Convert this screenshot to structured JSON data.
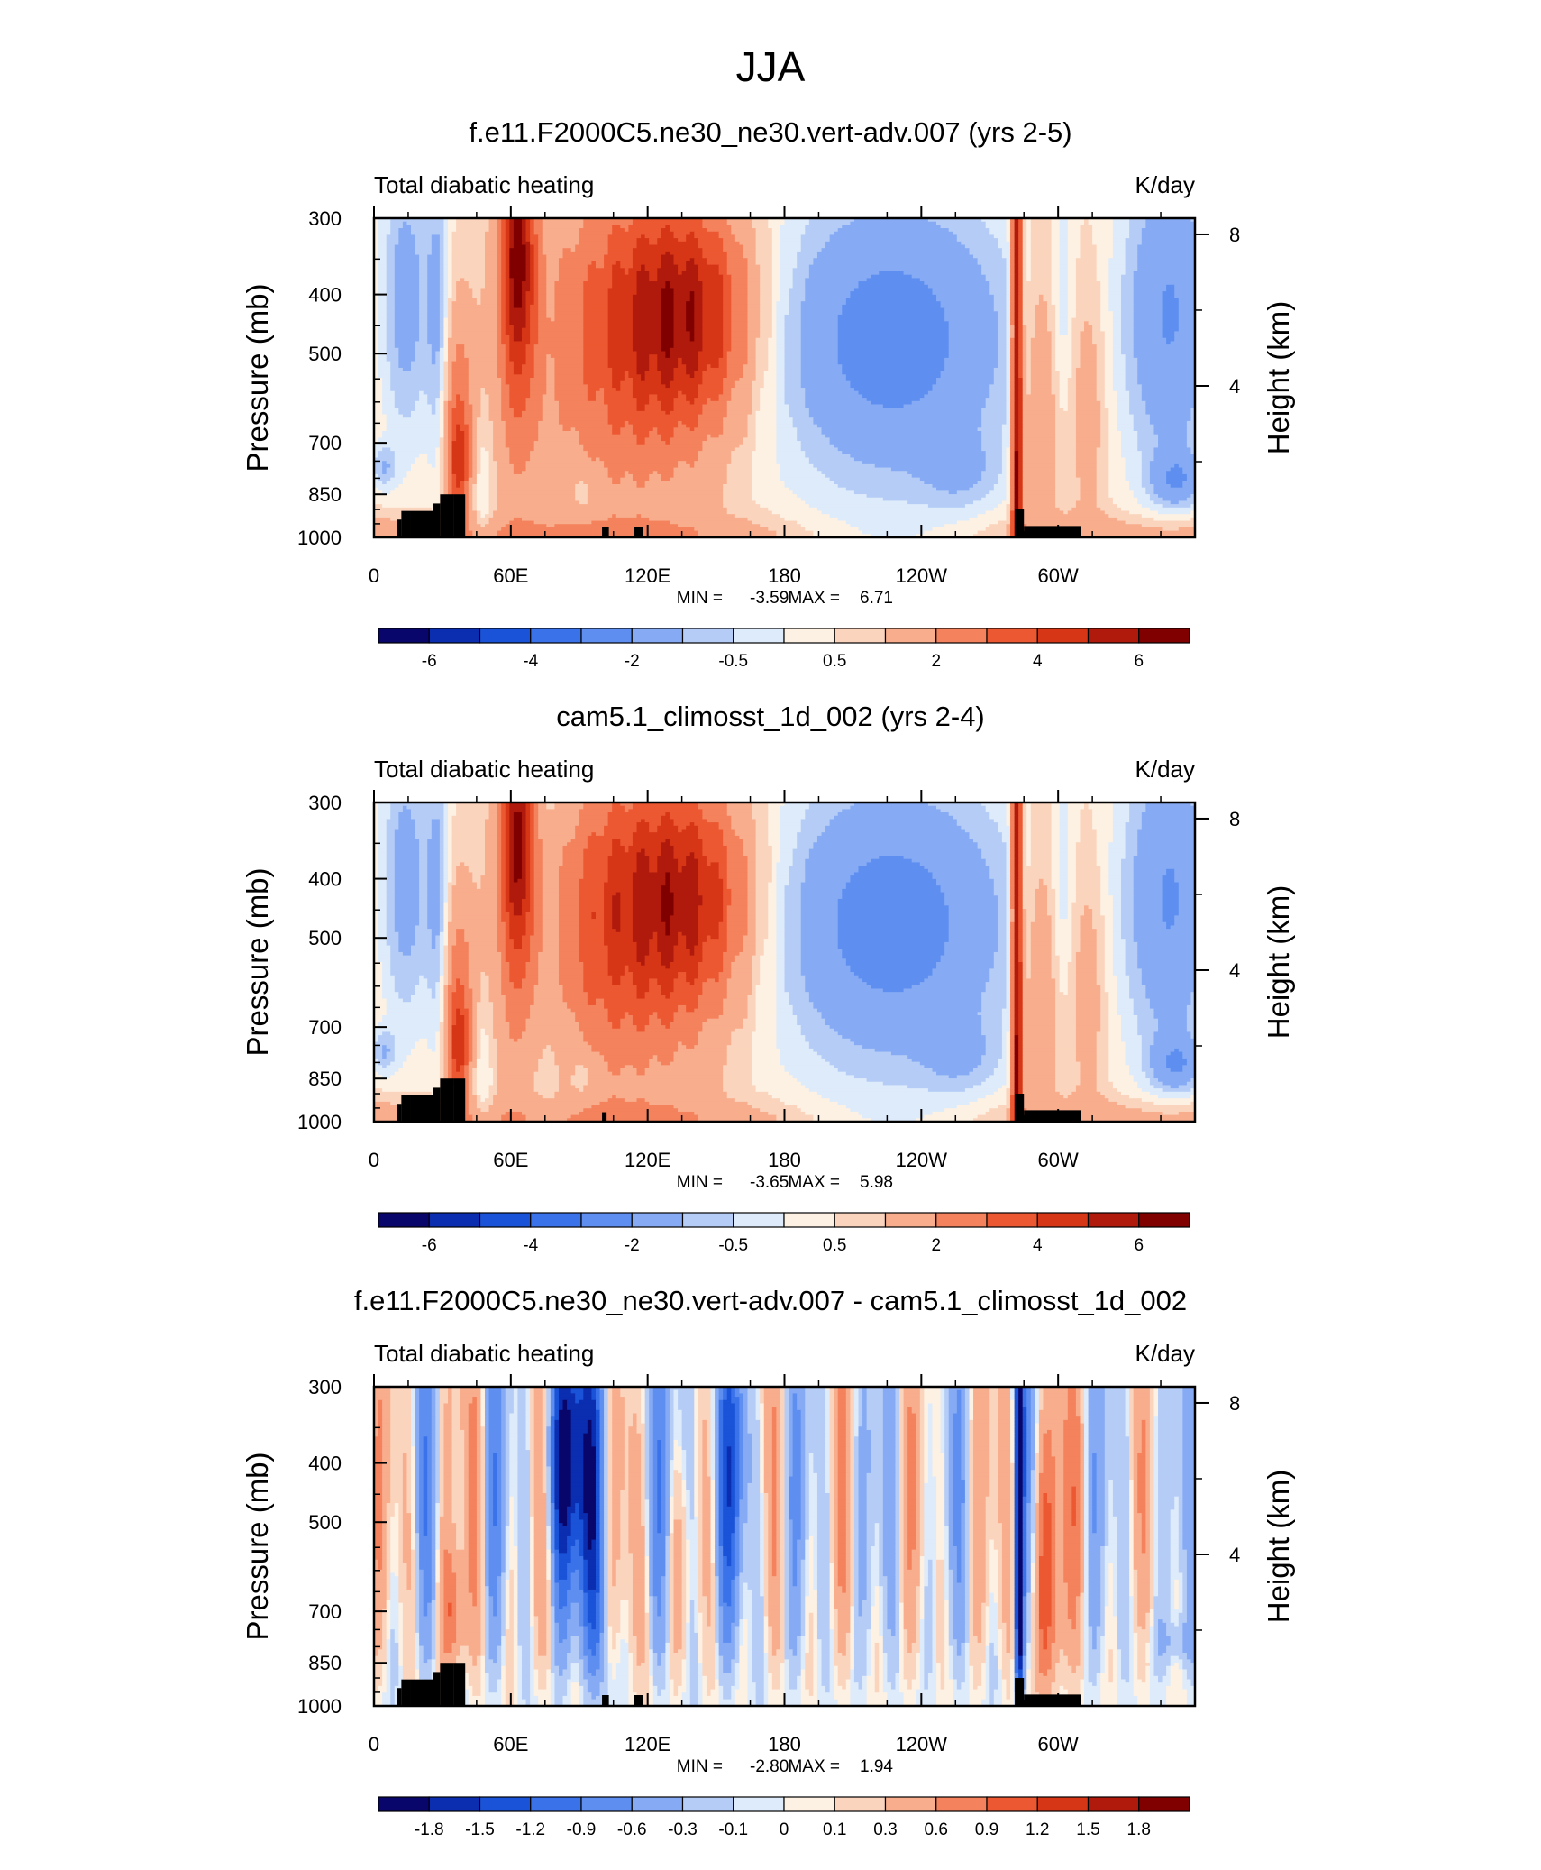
{
  "figure_title": "JJA",
  "colors": {
    "colormap": [
      "#08066b",
      "#0b2db0",
      "#1a53d7",
      "#3a72ea",
      "#5e8ff0",
      "#86abf4",
      "#b5cdf6",
      "#deebfa",
      "#fdf1e3",
      "#fbd4bd",
      "#f8ad8d",
      "#f3825d",
      "#ec5831",
      "#d63616",
      "#b01a0c",
      "#800000"
    ],
    "terrain": "#000000"
  },
  "chart_data": [
    {
      "type": "heatmap",
      "title": "f.e11.F2000C5.ne30_ne30.vert-adv.007 (yrs 2-5)",
      "left_string": "Total diabatic heating",
      "right_string": "K/day",
      "ylabel": "Pressure (mb)",
      "ylabel_right": "Height (km)",
      "yticks": [
        "300",
        "400",
        "500",
        "700",
        "850",
        "1000"
      ],
      "yticks_right": [
        "8",
        "4"
      ],
      "xticks": [
        "0",
        "60E",
        "120E",
        "180",
        "120W",
        "60W"
      ],
      "stats": {
        "min_label": "MIN =",
        "min": "-3.59",
        "max_label": "MAX =",
        "max": "6.71"
      },
      "colorbar_labels": [
        "-6",
        "-4",
        "-2",
        "-0.5",
        "0.5",
        "2",
        "4",
        "6"
      ],
      "colorbar_levels": [
        -7,
        -6,
        -5,
        -4,
        -3,
        -2,
        -1,
        -0.5,
        0,
        0.5,
        1,
        2,
        3,
        4,
        5,
        6,
        7
      ],
      "ylim": [
        1000,
        300
      ]
    },
    {
      "type": "heatmap",
      "title": "cam5.1_climosst_1d_002 (yrs 2-4)",
      "left_string": "Total diabatic heating",
      "right_string": "K/day",
      "ylabel": "Pressure (mb)",
      "ylabel_right": "Height (km)",
      "yticks": [
        "300",
        "400",
        "500",
        "700",
        "850",
        "1000"
      ],
      "yticks_right": [
        "8",
        "4"
      ],
      "xticks": [
        "0",
        "60E",
        "120E",
        "180",
        "120W",
        "60W"
      ],
      "stats": {
        "min_label": "MIN =",
        "min": "-3.65",
        "max_label": "MAX =",
        "max": "5.98"
      },
      "colorbar_labels": [
        "-6",
        "-4",
        "-2",
        "-0.5",
        "0.5",
        "2",
        "4",
        "6"
      ],
      "colorbar_levels": [
        -7,
        -6,
        -5,
        -4,
        -3,
        -2,
        -1,
        -0.5,
        0,
        0.5,
        1,
        2,
        3,
        4,
        5,
        6,
        7
      ],
      "ylim": [
        1000,
        300
      ]
    },
    {
      "type": "heatmap",
      "title": "f.e11.F2000C5.ne30_ne30.vert-adv.007 - cam5.1_climosst_1d_002",
      "left_string": "Total diabatic heating",
      "right_string": "K/day",
      "ylabel": "Pressure (mb)",
      "ylabel_right": "Height (km)",
      "yticks": [
        "300",
        "400",
        "500",
        "700",
        "850",
        "1000"
      ],
      "yticks_right": [
        "8",
        "4"
      ],
      "xticks": [
        "0",
        "60E",
        "120E",
        "180",
        "120W",
        "60W"
      ],
      "stats": {
        "min_label": "MIN =",
        "min": "-2.80",
        "max_label": "MAX =",
        "max": "1.94"
      },
      "colorbar_labels": [
        "-1.8",
        "-1.5",
        "-1.2",
        "-0.9",
        "-0.6",
        "-0.3",
        "-0.1",
        "0",
        "0.1",
        "0.3",
        "0.6",
        "0.9",
        "1.2",
        "1.5",
        "1.8"
      ],
      "colorbar_levels": [
        -2.1,
        -1.8,
        -1.5,
        -1.2,
        -0.9,
        -0.6,
        -0.3,
        -0.1,
        0,
        0.1,
        0.3,
        0.6,
        0.9,
        1.2,
        1.5,
        1.8,
        2.1
      ],
      "ylim": [
        1000,
        300
      ]
    }
  ]
}
